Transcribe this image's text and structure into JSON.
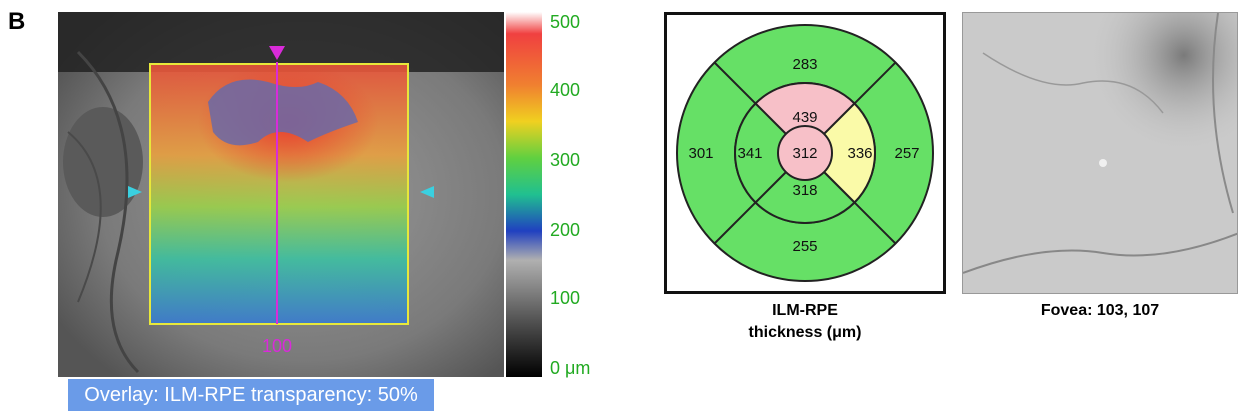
{
  "panel_label": "B",
  "fundus": {
    "scan_position_label": "100",
    "overlay_caption": "Overlay: ILM-RPE transparency: 50%"
  },
  "colorbar": {
    "ticks": [
      "500",
      "400",
      "300",
      "200",
      "100",
      "0 μm"
    ]
  },
  "etdrs_grid": {
    "center": "312",
    "inner_superior": "439",
    "inner_nasal": "336",
    "inner_inferior": "318",
    "inner_temporal": "341",
    "outer_superior": "283",
    "outer_nasal": "257",
    "outer_inferior": "255",
    "outer_temporal": "301",
    "caption_line1": "ILM-RPE",
    "caption_line2": "thickness (μm)",
    "colors": {
      "normal": "#66e066",
      "thick": "#f7c0c8",
      "borderline": "#fafaa8"
    }
  },
  "fovea": {
    "caption": "Fovea: 103, 107"
  }
}
